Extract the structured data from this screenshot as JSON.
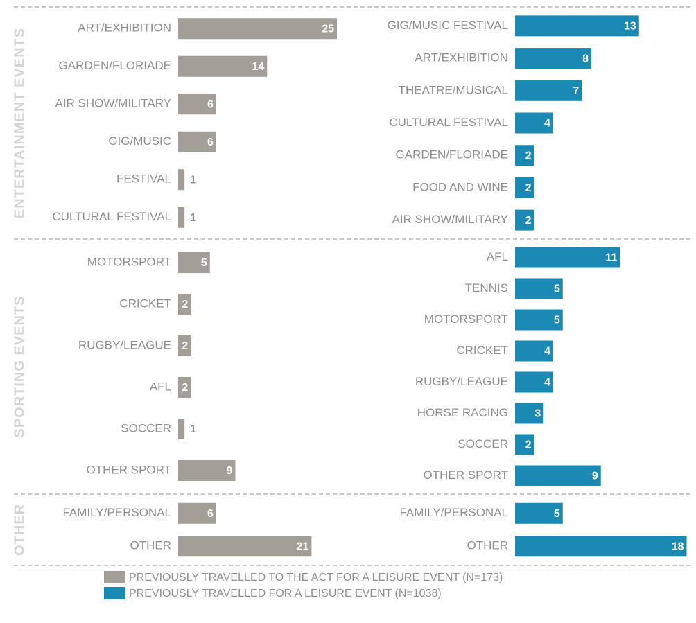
{
  "sections": [
    "ENTERTAINMENT EVENTS",
    "SPORTING EVENTS",
    "OTHER"
  ],
  "chart_data": [
    {
      "type": "bar",
      "name": "PREVIOUSLY TRAVELLED TO THE ACT FOR A LEISURE EVENT (N=173)",
      "color": "#a39e98",
      "groups": [
        {
          "categories": [
            "ART/EXHIBITION",
            "GARDEN/FLORIADE",
            "AIR SHOW/MILITARY",
            "GIG/MUSIC",
            "FESTIVAL",
            "CULTURAL FESTIVAL"
          ],
          "values": [
            25,
            14,
            6,
            6,
            1,
            1
          ]
        },
        {
          "categories": [
            "MOTORSPORT",
            "CRICKET",
            "RUGBY/LEAGUE",
            "AFL",
            "SOCCER",
            "OTHER SPORT"
          ],
          "values": [
            5,
            2,
            2,
            2,
            1,
            9
          ]
        },
        {
          "categories": [
            "FAMILY/PERSONAL",
            "OTHER"
          ],
          "values": [
            6,
            21
          ]
        }
      ]
    },
    {
      "type": "bar",
      "name": "PREVIOUSLY TRAVELLED FOR A LEISURE EVENT (N=1038)",
      "color": "#1a8ab5",
      "groups": [
        {
          "categories": [
            "GIG/MUSIC FESTIVAL",
            "ART/EXHIBITION",
            "THEATRE/MUSICAL",
            "CULTURAL FESTIVAL",
            "GARDEN/FLORIADE",
            "FOOD AND WINE",
            "AIR SHOW/MILITARY"
          ],
          "values": [
            13,
            8,
            7,
            4,
            2,
            2,
            2
          ]
        },
        {
          "categories": [
            "AFL",
            "TENNIS",
            "MOTORSPORT",
            "CRICKET",
            "RUGBY/LEAGUE",
            "HORSE RACING",
            "SOCCER",
            "OTHER SPORT"
          ],
          "values": [
            11,
            5,
            5,
            4,
            4,
            3,
            2,
            9
          ]
        },
        {
          "categories": [
            "FAMILY/PERSONAL",
            "OTHER"
          ],
          "values": [
            5,
            18
          ]
        }
      ]
    }
  ]
}
